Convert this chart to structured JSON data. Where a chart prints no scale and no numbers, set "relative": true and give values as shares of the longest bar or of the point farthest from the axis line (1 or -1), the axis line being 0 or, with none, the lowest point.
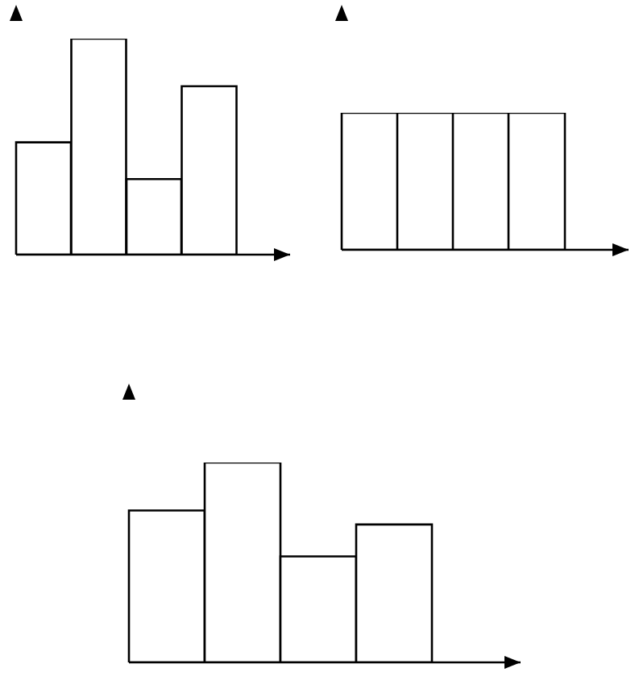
{
  "chart_data": [
    {
      "type": "bar",
      "relative": true,
      "categories": [
        null,
        null,
        null,
        null
      ],
      "values": [
        0.52,
        1,
        0.35,
        0.78
      ],
      "color": "#ffffff"
    },
    {
      "type": "bar",
      "relative": true,
      "categories": [
        null,
        null,
        null,
        null
      ],
      "values": [
        1,
        1,
        1,
        1
      ],
      "color": "#ffffff"
    },
    {
      "type": "bar",
      "relative": true,
      "categories": [
        null,
        null,
        null,
        null
      ],
      "values": [
        0.76,
        1,
        0.53,
        0.69
      ],
      "color": "#ffffff"
    }
  ]
}
